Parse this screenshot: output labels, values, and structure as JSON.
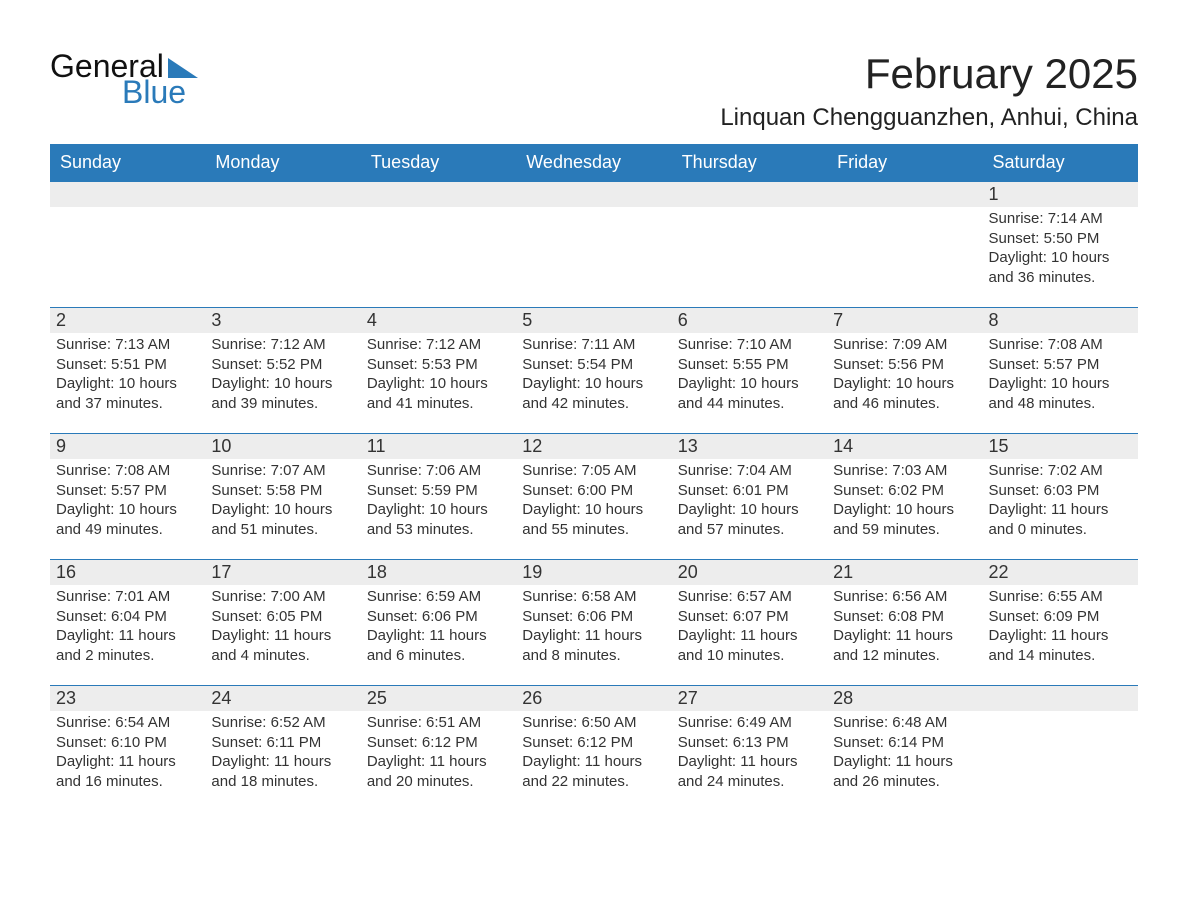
{
  "logo": {
    "general": "General",
    "blue": "Blue"
  },
  "header": {
    "month_title": "February 2025",
    "location": "Linquan Chengguanzhen, Anhui, China"
  },
  "colors": {
    "brand_blue": "#2a7ab9",
    "band_gray": "#ededed",
    "text": "#333333",
    "background": "#ffffff"
  },
  "calendar": {
    "weekday_labels": [
      "Sunday",
      "Monday",
      "Tuesday",
      "Wednesday",
      "Thursday",
      "Friday",
      "Saturday"
    ],
    "first_day_of_week_index": 6,
    "num_days": 28,
    "days": [
      {
        "n": 1,
        "sunrise": "7:14 AM",
        "sunset": "5:50 PM",
        "daylight_h": 10,
        "daylight_m": 36
      },
      {
        "n": 2,
        "sunrise": "7:13 AM",
        "sunset": "5:51 PM",
        "daylight_h": 10,
        "daylight_m": 37
      },
      {
        "n": 3,
        "sunrise": "7:12 AM",
        "sunset": "5:52 PM",
        "daylight_h": 10,
        "daylight_m": 39
      },
      {
        "n": 4,
        "sunrise": "7:12 AM",
        "sunset": "5:53 PM",
        "daylight_h": 10,
        "daylight_m": 41
      },
      {
        "n": 5,
        "sunrise": "7:11 AM",
        "sunset": "5:54 PM",
        "daylight_h": 10,
        "daylight_m": 42
      },
      {
        "n": 6,
        "sunrise": "7:10 AM",
        "sunset": "5:55 PM",
        "daylight_h": 10,
        "daylight_m": 44
      },
      {
        "n": 7,
        "sunrise": "7:09 AM",
        "sunset": "5:56 PM",
        "daylight_h": 10,
        "daylight_m": 46
      },
      {
        "n": 8,
        "sunrise": "7:08 AM",
        "sunset": "5:57 PM",
        "daylight_h": 10,
        "daylight_m": 48
      },
      {
        "n": 9,
        "sunrise": "7:08 AM",
        "sunset": "5:57 PM",
        "daylight_h": 10,
        "daylight_m": 49
      },
      {
        "n": 10,
        "sunrise": "7:07 AM",
        "sunset": "5:58 PM",
        "daylight_h": 10,
        "daylight_m": 51
      },
      {
        "n": 11,
        "sunrise": "7:06 AM",
        "sunset": "5:59 PM",
        "daylight_h": 10,
        "daylight_m": 53
      },
      {
        "n": 12,
        "sunrise": "7:05 AM",
        "sunset": "6:00 PM",
        "daylight_h": 10,
        "daylight_m": 55
      },
      {
        "n": 13,
        "sunrise": "7:04 AM",
        "sunset": "6:01 PM",
        "daylight_h": 10,
        "daylight_m": 57
      },
      {
        "n": 14,
        "sunrise": "7:03 AM",
        "sunset": "6:02 PM",
        "daylight_h": 10,
        "daylight_m": 59
      },
      {
        "n": 15,
        "sunrise": "7:02 AM",
        "sunset": "6:03 PM",
        "daylight_h": 11,
        "daylight_m": 0
      },
      {
        "n": 16,
        "sunrise": "7:01 AM",
        "sunset": "6:04 PM",
        "daylight_h": 11,
        "daylight_m": 2
      },
      {
        "n": 17,
        "sunrise": "7:00 AM",
        "sunset": "6:05 PM",
        "daylight_h": 11,
        "daylight_m": 4
      },
      {
        "n": 18,
        "sunrise": "6:59 AM",
        "sunset": "6:06 PM",
        "daylight_h": 11,
        "daylight_m": 6
      },
      {
        "n": 19,
        "sunrise": "6:58 AM",
        "sunset": "6:06 PM",
        "daylight_h": 11,
        "daylight_m": 8
      },
      {
        "n": 20,
        "sunrise": "6:57 AM",
        "sunset": "6:07 PM",
        "daylight_h": 11,
        "daylight_m": 10
      },
      {
        "n": 21,
        "sunrise": "6:56 AM",
        "sunset": "6:08 PM",
        "daylight_h": 11,
        "daylight_m": 12
      },
      {
        "n": 22,
        "sunrise": "6:55 AM",
        "sunset": "6:09 PM",
        "daylight_h": 11,
        "daylight_m": 14
      },
      {
        "n": 23,
        "sunrise": "6:54 AM",
        "sunset": "6:10 PM",
        "daylight_h": 11,
        "daylight_m": 16
      },
      {
        "n": 24,
        "sunrise": "6:52 AM",
        "sunset": "6:11 PM",
        "daylight_h": 11,
        "daylight_m": 18
      },
      {
        "n": 25,
        "sunrise": "6:51 AM",
        "sunset": "6:12 PM",
        "daylight_h": 11,
        "daylight_m": 20
      },
      {
        "n": 26,
        "sunrise": "6:50 AM",
        "sunset": "6:12 PM",
        "daylight_h": 11,
        "daylight_m": 22
      },
      {
        "n": 27,
        "sunrise": "6:49 AM",
        "sunset": "6:13 PM",
        "daylight_h": 11,
        "daylight_m": 24
      },
      {
        "n": 28,
        "sunrise": "6:48 AM",
        "sunset": "6:14 PM",
        "daylight_h": 11,
        "daylight_m": 26
      }
    ]
  },
  "labels": {
    "sunrise_prefix": "Sunrise: ",
    "sunset_prefix": "Sunset: ",
    "daylight_prefix": "Daylight: ",
    "hours_word": " hours and ",
    "minutes_word": " minutes."
  },
  "typography": {
    "month_title_fontsize": 42,
    "location_fontsize": 24,
    "weekday_fontsize": 18,
    "daynum_fontsize": 18,
    "body_fontsize": 15
  }
}
